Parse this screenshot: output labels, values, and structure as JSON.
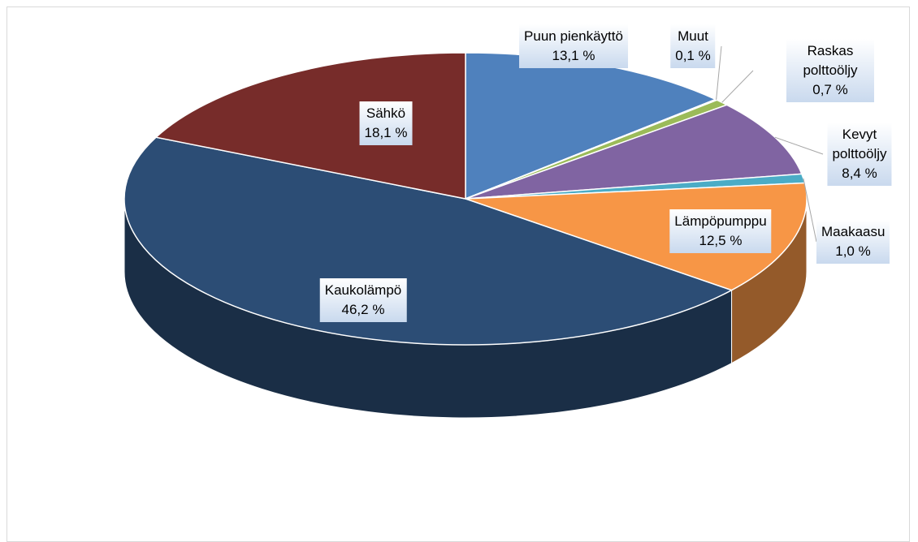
{
  "chart_data": {
    "type": "pie3d",
    "categories": [
      "Puun pienkäyttö",
      "Muut",
      "Raskas polttoöljy",
      "Kevyt polttoöljy",
      "Maakaasu",
      "Lämpöpumppu",
      "Kaukolämpö",
      "Sähkö"
    ],
    "values": [
      13.1,
      0.1,
      0.7,
      8.4,
      1.0,
      12.5,
      46.2,
      18.1
    ],
    "value_labels": [
      "13,1 %",
      "0,1 %",
      "0,7 %",
      "8,4 %",
      "1,0 %",
      "12,5 %",
      "46,2 %",
      "18,1 %"
    ],
    "colors": [
      "#4f81bd",
      "#c0504d",
      "#9bbb59",
      "#8064a2",
      "#4bacc6",
      "#f79646",
      "#2c4d75",
      "#772c2a"
    ]
  }
}
